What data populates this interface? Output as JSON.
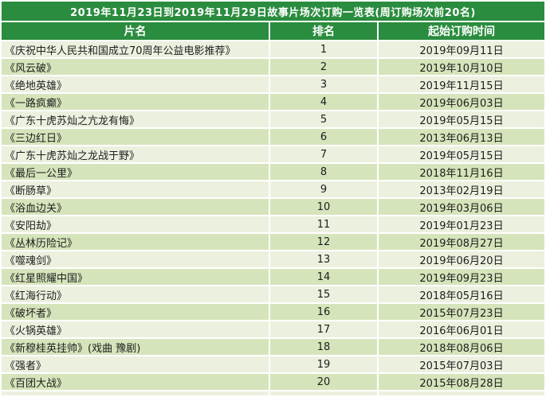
{
  "table": {
    "title": "2019年11月23日到2019年11月29日故事片场次订购一览表(周订购场次前20名)",
    "columns": [
      "片名",
      "排名",
      "起始订购时间"
    ],
    "rows": [
      {
        "name": "《庆祝中华人民共和国成立70周年公益电影推荐》",
        "rank": "1",
        "date": "2019年09月11日"
      },
      {
        "name": "《风云破》",
        "rank": "2",
        "date": "2019年10月10日"
      },
      {
        "name": "《绝地英雄》",
        "rank": "3",
        "date": "2019年11月15日"
      },
      {
        "name": "《一路疯癫》",
        "rank": "4",
        "date": "2019年06月03日"
      },
      {
        "name": "《广东十虎苏灿之亢龙有悔》",
        "rank": "5",
        "date": "2019年05月15日"
      },
      {
        "name": "《三边红日》",
        "rank": "6",
        "date": "2013年06月13日"
      },
      {
        "name": "《广东十虎苏灿之龙战于野》",
        "rank": "7",
        "date": "2019年05月15日"
      },
      {
        "name": "《最后一公里》",
        "rank": "8",
        "date": "2018年11月16日"
      },
      {
        "name": "《断肠草》",
        "rank": "9",
        "date": "2013年02月19日"
      },
      {
        "name": "《浴血边关》",
        "rank": "10",
        "date": "2019年03月06日"
      },
      {
        "name": "《安阳劫》",
        "rank": "11",
        "date": "2019年01月23日"
      },
      {
        "name": "《丛林历险记》",
        "rank": "12",
        "date": "2019年08月27日"
      },
      {
        "name": "《噬魂剑》",
        "rank": "13",
        "date": "2019年06月20日"
      },
      {
        "name": "《红星照耀中国》",
        "rank": "14",
        "date": "2019年09月23日"
      },
      {
        "name": "《红海行动》",
        "rank": "15",
        "date": "2018年05月16日"
      },
      {
        "name": "《破坏者》",
        "rank": "16",
        "date": "2015年07月23日"
      },
      {
        "name": "《火锅英雄》",
        "rank": "17",
        "date": "2016年06月01日"
      },
      {
        "name": "《新穆桂英挂帅》(戏曲 豫剧)",
        "rank": "18",
        "date": "2018年08月06日"
      },
      {
        "name": "《强者》",
        "rank": "19",
        "date": "2015年07月03日"
      },
      {
        "name": "《百团大战》",
        "rank": "20",
        "date": "2015年08月28日"
      }
    ],
    "colors": {
      "header_green": "#2a8c3e",
      "row_light": "#ebf1de",
      "row_dark": "#d6e4bb",
      "grid_white": "#ffffff",
      "text_dark": "#1d1d1d",
      "header_text": "#ffffff"
    }
  }
}
